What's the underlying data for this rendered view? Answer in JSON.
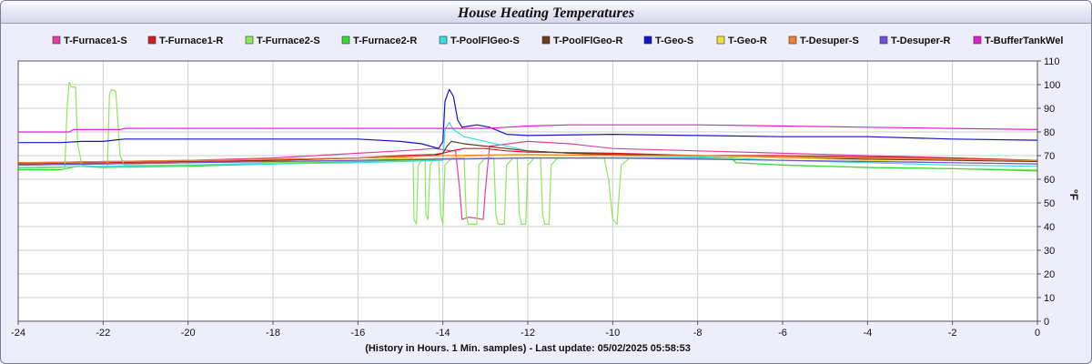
{
  "chart_data": {
    "type": "line",
    "title": "House Heating Temperatures",
    "xlabel": "(History in Hours. 1 Min. samples) - Last update: 05/02/2025 05:58:53",
    "ylabel": "°F",
    "xlim": [
      -24,
      0
    ],
    "ylim": [
      0,
      110
    ],
    "x_ticks": [
      -24,
      -22,
      -20,
      -18,
      -16,
      -14,
      -12,
      -10,
      -8,
      -6,
      -4,
      -2,
      0
    ],
    "y_ticks": [
      0,
      10,
      20,
      30,
      40,
      50,
      60,
      70,
      80,
      90,
      100,
      110
    ],
    "grid": true,
    "legend_position": "top",
    "series": [
      {
        "name": "T-Furnace1-S",
        "color": "#e0409a",
        "points": [
          [
            -24,
            67
          ],
          [
            -22,
            67.5
          ],
          [
            -20,
            68
          ],
          [
            -18,
            69
          ],
          [
            -16,
            71
          ],
          [
            -15,
            72
          ],
          [
            -14.2,
            73
          ],
          [
            -13.8,
            72
          ],
          [
            -13.7,
            72
          ],
          [
            -13.6,
            55
          ],
          [
            -13.55,
            43
          ],
          [
            -13.4,
            44
          ],
          [
            -13.2,
            43.5
          ],
          [
            -13.05,
            43
          ],
          [
            -13.0,
            55
          ],
          [
            -12.9,
            74
          ],
          [
            -12,
            76
          ],
          [
            -11,
            75
          ],
          [
            -10,
            73
          ],
          [
            -8,
            72
          ],
          [
            -6,
            71
          ],
          [
            -4,
            70
          ],
          [
            -2,
            69
          ],
          [
            0,
            68
          ]
        ]
      },
      {
        "name": "T-Furnace1-R",
        "color": "#d01e1e",
        "points": [
          [
            -24,
            66.5
          ],
          [
            -22,
            67
          ],
          [
            -20,
            67.5
          ],
          [
            -18,
            68
          ],
          [
            -16,
            69
          ],
          [
            -15,
            70
          ],
          [
            -14.2,
            70.5
          ],
          [
            -14,
            71
          ],
          [
            -13.8,
            72
          ],
          [
            -13.5,
            73
          ],
          [
            -13,
            73
          ],
          [
            -12.5,
            72
          ],
          [
            -12,
            71.5
          ],
          [
            -10,
            71
          ],
          [
            -8,
            70
          ],
          [
            -6,
            70
          ],
          [
            -4,
            69.5
          ],
          [
            -2,
            69
          ],
          [
            0,
            68
          ]
        ]
      },
      {
        "name": "T-Furnace2-S",
        "color": "#8ae85a",
        "points": [
          [
            -24,
            64.5
          ],
          [
            -23,
            65
          ],
          [
            -22.9,
            65
          ],
          [
            -22.85,
            90
          ],
          [
            -22.8,
            101
          ],
          [
            -22.75,
            99
          ],
          [
            -22.65,
            99
          ],
          [
            -22.6,
            75
          ],
          [
            -22.5,
            66
          ],
          [
            -22,
            65
          ],
          [
            -21.9,
            65
          ],
          [
            -21.85,
            96
          ],
          [
            -21.8,
            98
          ],
          [
            -21.7,
            97
          ],
          [
            -21.6,
            70
          ],
          [
            -21.5,
            66
          ],
          [
            -20,
            66
          ],
          [
            -18,
            67
          ],
          [
            -16,
            68
          ],
          [
            -15,
            69
          ],
          [
            -14.7,
            69
          ],
          [
            -14.68,
            43
          ],
          [
            -14.62,
            41
          ],
          [
            -14.58,
            66
          ],
          [
            -14.5,
            68
          ],
          [
            -14.42,
            68
          ],
          [
            -14.4,
            45
          ],
          [
            -14.35,
            43
          ],
          [
            -14.3,
            66
          ],
          [
            -14.2,
            69
          ],
          [
            -14.1,
            69
          ],
          [
            -14.05,
            45
          ],
          [
            -14.0,
            41
          ],
          [
            -13.95,
            66
          ],
          [
            -13.8,
            69
          ],
          [
            -13.5,
            69
          ],
          [
            -13.45,
            45
          ],
          [
            -13.4,
            41
          ],
          [
            -13.2,
            41
          ],
          [
            -13.15,
            66
          ],
          [
            -13.0,
            69
          ],
          [
            -12.8,
            69
          ],
          [
            -12.75,
            45
          ],
          [
            -12.7,
            41
          ],
          [
            -12.55,
            41
          ],
          [
            -12.5,
            66
          ],
          [
            -12.35,
            69
          ],
          [
            -12.25,
            69
          ],
          [
            -12.2,
            45
          ],
          [
            -12.15,
            41
          ],
          [
            -12.05,
            41
          ],
          [
            -12.0,
            66
          ],
          [
            -11.85,
            69
          ],
          [
            -11.7,
            69
          ],
          [
            -11.65,
            45
          ],
          [
            -11.6,
            41
          ],
          [
            -11.5,
            41
          ],
          [
            -11.45,
            66
          ],
          [
            -11.3,
            69
          ],
          [
            -10.2,
            69
          ],
          [
            -10.1,
            60
          ],
          [
            -10.0,
            43
          ],
          [
            -9.9,
            41
          ],
          [
            -9.8,
            66
          ],
          [
            -9.6,
            69
          ],
          [
            -8,
            69
          ],
          [
            -7.2,
            69
          ],
          [
            -7.1,
            67
          ],
          [
            -6,
            66
          ],
          [
            -4,
            65
          ],
          [
            -2,
            64.5
          ],
          [
            0,
            64
          ]
        ]
      },
      {
        "name": "T-Furnace2-R",
        "color": "#38d838",
        "points": [
          [
            -24,
            64
          ],
          [
            -23,
            64
          ],
          [
            -22.6,
            65.5
          ],
          [
            -22,
            65
          ],
          [
            -20,
            65.5
          ],
          [
            -18,
            66.5
          ],
          [
            -16,
            67.5
          ],
          [
            -15,
            68
          ],
          [
            -14,
            68.5
          ],
          [
            -12,
            69
          ],
          [
            -10,
            69
          ],
          [
            -8,
            69
          ],
          [
            -7.2,
            69
          ],
          [
            -7.1,
            67
          ],
          [
            -6,
            66
          ],
          [
            -4,
            65
          ],
          [
            -2,
            64.5
          ],
          [
            0,
            63.5
          ]
        ]
      },
      {
        "name": "T-PoolFlGeo-S",
        "color": "#30e0e0",
        "points": [
          [
            -24,
            65
          ],
          [
            -22,
            65.5
          ],
          [
            -20,
            66
          ],
          [
            -18,
            66.5
          ],
          [
            -16,
            67
          ],
          [
            -15,
            67.5
          ],
          [
            -14,
            68
          ],
          [
            -13.95,
            81
          ],
          [
            -13.85,
            84
          ],
          [
            -13.75,
            81
          ],
          [
            -13.5,
            78
          ],
          [
            -13,
            76
          ],
          [
            -12.5,
            74
          ],
          [
            -12,
            72
          ],
          [
            -11,
            71
          ],
          [
            -10,
            70
          ],
          [
            -8,
            69.5
          ],
          [
            -6,
            68
          ],
          [
            -4,
            67
          ],
          [
            -2,
            66
          ],
          [
            0,
            65.5
          ]
        ]
      },
      {
        "name": "T-PoolFlGeo-R",
        "color": "#6b3a1a",
        "points": [
          [
            -24,
            66
          ],
          [
            -22,
            66.5
          ],
          [
            -20,
            67
          ],
          [
            -18,
            68
          ],
          [
            -16,
            69
          ],
          [
            -15,
            69.5
          ],
          [
            -14.2,
            70
          ],
          [
            -14,
            71
          ],
          [
            -13.9,
            74
          ],
          [
            -13.8,
            76
          ],
          [
            -13.5,
            75
          ],
          [
            -13,
            74
          ],
          [
            -12.5,
            73
          ],
          [
            -12,
            72
          ],
          [
            -11,
            71
          ],
          [
            -10,
            70.5
          ],
          [
            -8,
            70
          ],
          [
            -6,
            69
          ],
          [
            -4,
            68.5
          ],
          [
            -2,
            68
          ],
          [
            0,
            67.5
          ]
        ]
      },
      {
        "name": "T-Geo-S",
        "color": "#1515c8",
        "points": [
          [
            -24,
            75.5
          ],
          [
            -23,
            75.5
          ],
          [
            -22.5,
            76
          ],
          [
            -22,
            76
          ],
          [
            -21.5,
            77
          ],
          [
            -20,
            77
          ],
          [
            -18,
            77
          ],
          [
            -16,
            77
          ],
          [
            -15,
            76
          ],
          [
            -14.5,
            75
          ],
          [
            -14.1,
            73
          ],
          [
            -14.0,
            76
          ],
          [
            -13.95,
            93
          ],
          [
            -13.85,
            98
          ],
          [
            -13.75,
            95
          ],
          [
            -13.65,
            85
          ],
          [
            -13.55,
            82
          ],
          [
            -13.2,
            83
          ],
          [
            -12.9,
            82
          ],
          [
            -12.5,
            79
          ],
          [
            -12,
            78.5
          ],
          [
            -10,
            79
          ],
          [
            -8,
            78.5
          ],
          [
            -6,
            78
          ],
          [
            -4,
            78
          ],
          [
            -2,
            77
          ],
          [
            0,
            76.5
          ]
        ]
      },
      {
        "name": "T-Geo-R",
        "color": "#f0e040",
        "points": [
          [
            -24,
            66
          ],
          [
            -22,
            66.5
          ],
          [
            -20,
            67
          ],
          [
            -18,
            67.5
          ],
          [
            -16,
            68
          ],
          [
            -14,
            69
          ],
          [
            -13,
            70
          ],
          [
            -12,
            70
          ],
          [
            -10,
            70
          ],
          [
            -8,
            70
          ],
          [
            -6,
            69
          ],
          [
            -4,
            68
          ],
          [
            -2,
            67
          ],
          [
            0,
            66.5
          ]
        ]
      },
      {
        "name": "T-Desuper-S",
        "color": "#f08030",
        "points": [
          [
            -24,
            67
          ],
          [
            -22,
            67.5
          ],
          [
            -20,
            68
          ],
          [
            -18,
            68.5
          ],
          [
            -16,
            69
          ],
          [
            -15,
            69.5
          ],
          [
            -14,
            70
          ],
          [
            -12,
            70.5
          ],
          [
            -10,
            70
          ],
          [
            -8,
            70
          ],
          [
            -6,
            69.5
          ],
          [
            -4,
            69
          ],
          [
            -2,
            68.5
          ],
          [
            0,
            68
          ]
        ]
      },
      {
        "name": "T-Desuper-R",
        "color": "#7050d8",
        "points": [
          [
            -24,
            66
          ],
          [
            -22,
            66.5
          ],
          [
            -20,
            67
          ],
          [
            -18,
            67.5
          ],
          [
            -16,
            68
          ],
          [
            -14,
            68.5
          ],
          [
            -12,
            69
          ],
          [
            -10,
            69
          ],
          [
            -8,
            68.5
          ],
          [
            -6,
            68
          ],
          [
            -4,
            67.5
          ],
          [
            -2,
            67
          ],
          [
            0,
            66.5
          ]
        ]
      },
      {
        "name": "T-BufferTankWel",
        "color": "#e020d0",
        "points": [
          [
            -24,
            80
          ],
          [
            -22.8,
            80
          ],
          [
            -22.7,
            81
          ],
          [
            -22,
            81
          ],
          [
            -21.6,
            81
          ],
          [
            -21.5,
            81.5
          ],
          [
            -20,
            81.5
          ],
          [
            -16,
            81.5
          ],
          [
            -14,
            81.5
          ],
          [
            -13,
            81.5
          ],
          [
            -12.5,
            82
          ],
          [
            -12,
            82.5
          ],
          [
            -11,
            83
          ],
          [
            -10,
            83
          ],
          [
            -8,
            83
          ],
          [
            -6,
            82.5
          ],
          [
            -4,
            82
          ],
          [
            -2,
            81.5
          ],
          [
            0,
            81
          ]
        ]
      }
    ]
  }
}
